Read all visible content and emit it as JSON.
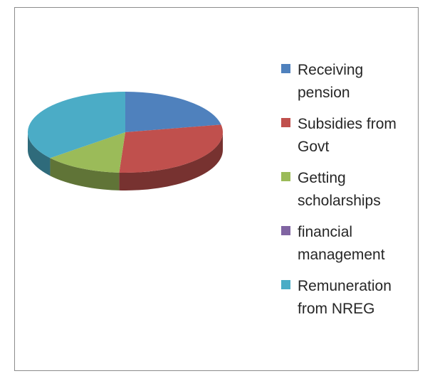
{
  "chart_data": {
    "type": "pie",
    "style": "3d",
    "legend_position": "right",
    "categories": [
      "Receiving pension",
      "Subsidies from Govt",
      "Getting scholarships",
      "financial management",
      "Remuneration from NREG"
    ],
    "values": [
      22,
      29,
      13,
      0,
      36
    ],
    "colors": [
      "#4f81bd",
      "#c0504d",
      "#9bbb59",
      "#8064a2",
      "#4bacc6"
    ]
  },
  "legend": {
    "items": [
      {
        "label_line1": "Receiving",
        "label_line2": "pension",
        "color": "#4f81bd"
      },
      {
        "label_line1": "Subsidies from",
        "label_line2": "Govt",
        "color": "#c0504d"
      },
      {
        "label_line1": "Getting",
        "label_line2": "scholarships",
        "color": "#9bbb59"
      },
      {
        "label_line1": "financial",
        "label_line2": "management",
        "color": "#8064a2"
      },
      {
        "label_line1": "Remuneration",
        "label_line2": "from NREG",
        "color": "#4bacc6"
      }
    ]
  }
}
